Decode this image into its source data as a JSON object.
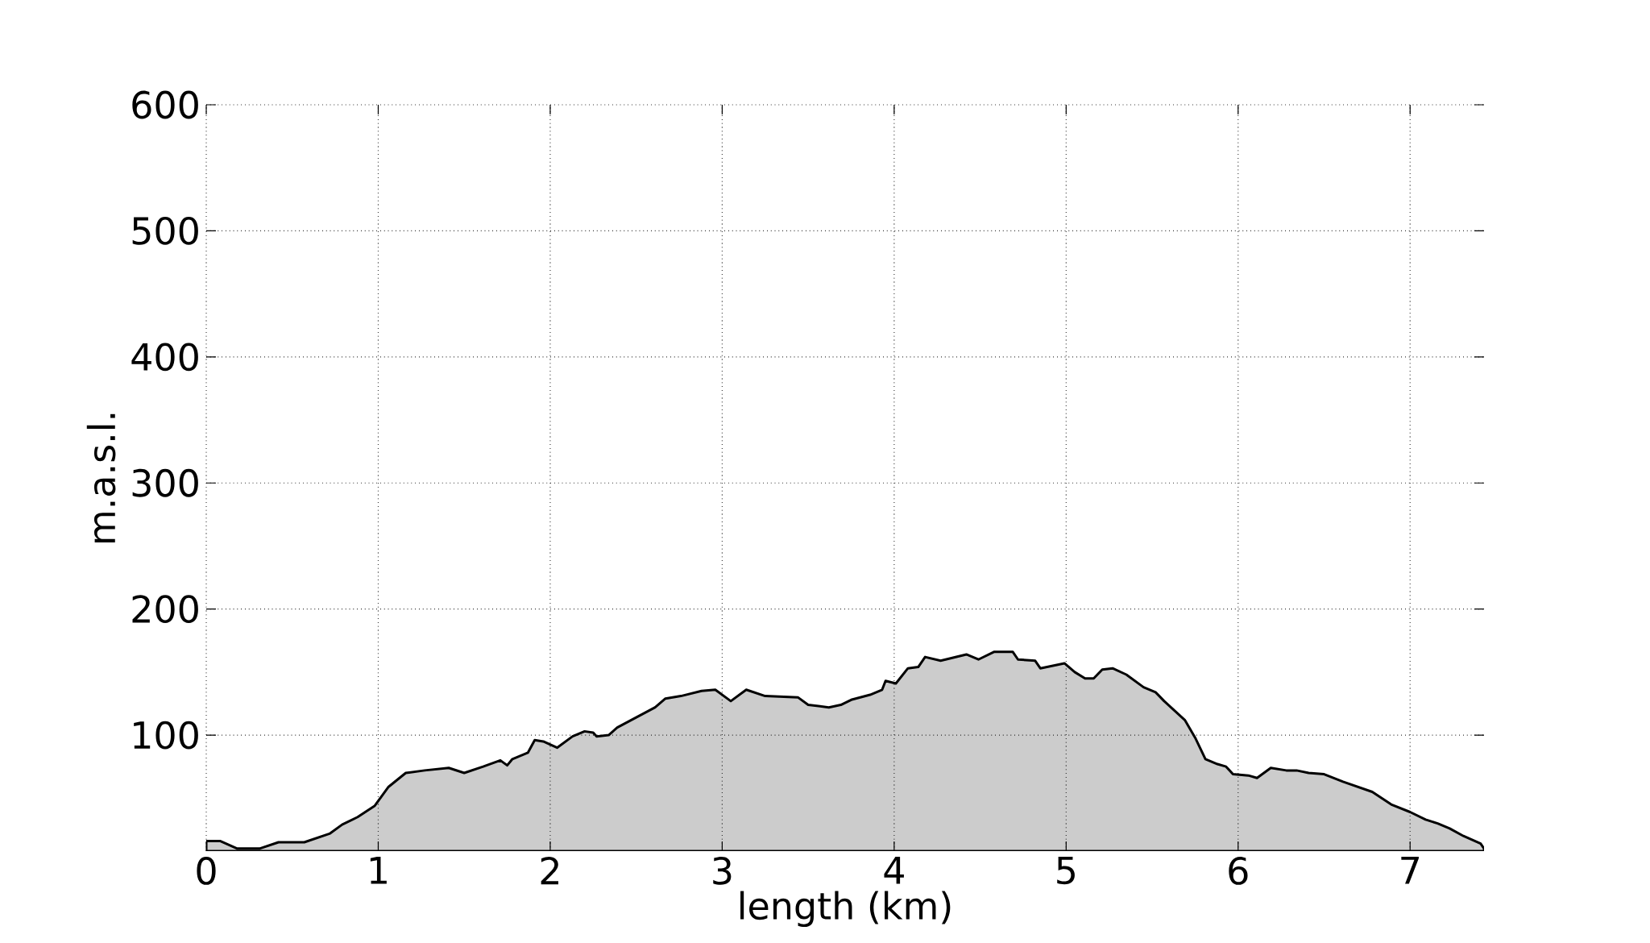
{
  "chart_data": {
    "type": "area",
    "xlabel": "length (km)",
    "ylabel": "m.a.s.l.",
    "x": [
      0,
      0.08,
      0.18,
      0.31,
      0.42,
      0.57,
      0.72,
      0.79,
      0.88,
      0.98,
      1.06,
      1.16,
      1.27,
      1.41,
      1.5,
      1.61,
      1.71,
      1.75,
      1.78,
      1.87,
      1.91,
      1.96,
      2.04,
      2.13,
      2.2,
      2.25,
      2.27,
      2.34,
      2.39,
      2.5,
      2.61,
      2.67,
      2.76,
      2.88,
      2.96,
      3.05,
      3.14,
      3.25,
      3.44,
      3.5,
      3.62,
      3.69,
      3.75,
      3.86,
      3.93,
      3.95,
      4.01,
      4.08,
      4.14,
      4.18,
      4.27,
      4.42,
      4.49,
      4.58,
      4.69,
      4.72,
      4.82,
      4.85,
      4.99,
      5.05,
      5.11,
      5.16,
      5.21,
      5.27,
      5.35,
      5.45,
      5.52,
      5.57,
      5.69,
      5.75,
      5.81,
      5.88,
      5.93,
      5.97,
      6.06,
      6.11,
      6.19,
      6.28,
      6.34,
      6.41,
      6.5,
      6.61,
      6.78,
      6.89,
      7.0,
      7.09,
      7.16,
      7.23,
      7.31,
      7.41,
      7.43
    ],
    "series": [
      {
        "color": "#cccccc",
        "values": [
          16,
          16,
          10,
          10,
          15,
          15,
          22,
          29,
          35,
          44,
          59,
          70,
          72,
          74,
          70,
          75,
          80,
          76,
          81,
          86,
          96,
          95,
          90,
          99,
          103,
          102,
          99,
          100,
          106,
          114,
          122,
          129,
          131,
          135,
          136,
          127,
          136,
          131,
          130,
          124,
          122,
          124,
          128,
          132,
          136,
          143,
          141,
          153,
          154,
          162,
          159,
          164,
          160,
          166,
          166,
          160,
          159,
          153,
          157,
          150,
          145,
          145,
          152,
          153,
          148,
          138,
          134,
          127,
          112,
          98,
          81,
          77,
          75,
          69,
          68,
          66,
          74,
          72,
          72,
          70,
          69,
          63,
          55,
          45,
          39,
          33,
          30,
          26,
          20,
          14,
          10
        ]
      }
    ],
    "xlim": [
      0,
      7.43
    ],
    "ylim": [
      8,
      600
    ],
    "xticks": [
      0,
      1,
      2,
      3,
      4,
      5,
      6,
      7
    ],
    "yticks": [
      100,
      200,
      300,
      400,
      500,
      600
    ],
    "grid": true
  }
}
